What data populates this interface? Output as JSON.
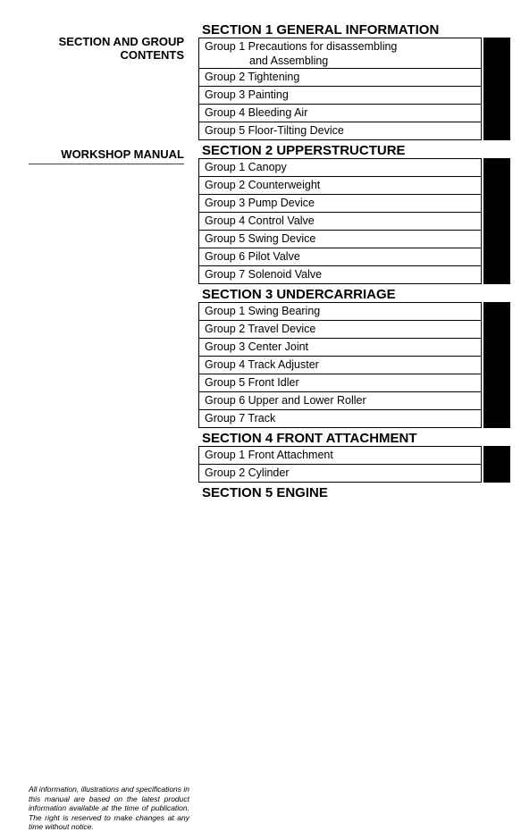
{
  "left": {
    "heading1_line1": "SECTION AND GROUP",
    "heading1_line2": "CONTENTS",
    "heading2": "WORKSHOP MANUAL",
    "disclaimer": "All information, illustrations and specifications in this manual are based on the latest product information available at the time of publication. The right is reserved to make changes at any time without notice."
  },
  "sections": [
    {
      "title": "SECTION 1 GENERAL INFORMATION",
      "groups": [
        {
          "label": "Group 1 Precautions for disassembling",
          "label2": "and Assembling",
          "tall": true
        },
        {
          "label": "Group 2 Tightening"
        },
        {
          "label": "Group 3 Painting"
        },
        {
          "label": "Group 4 Bleeding Air"
        },
        {
          "label": "Group 5 Floor-Tilting Device"
        }
      ]
    },
    {
      "title": "SECTION 2 UPPERSTRUCTURE",
      "groups": [
        {
          "label": "Group 1 Canopy"
        },
        {
          "label": "Group 2 Counterweight"
        },
        {
          "label": "Group 3 Pump Device"
        },
        {
          "label": "Group 4 Control Valve"
        },
        {
          "label": "Group 5 Swing Device"
        },
        {
          "label": "Group 6 Pilot Valve"
        },
        {
          "label": "Group 7 Solenoid Valve"
        }
      ]
    },
    {
      "title": "SECTION 3 UNDERCARRIAGE",
      "groups": [
        {
          "label": "Group 1 Swing Bearing"
        },
        {
          "label": "Group 2 Travel Device"
        },
        {
          "label": "Group 3 Center Joint"
        },
        {
          "label": "Group 4 Track Adjuster"
        },
        {
          "label": "Group 5 Front Idler"
        },
        {
          "label": "Group 6 Upper and Lower Roller"
        },
        {
          "label": "Group 7 Track"
        }
      ]
    },
    {
      "title": "SECTION 4 FRONT ATTACHMENT",
      "groups": [
        {
          "label": "Group 1 Front Attachment"
        },
        {
          "label": "Group 2 Cylinder"
        }
      ]
    },
    {
      "title": "SECTION 5 ENGINE",
      "groups": []
    }
  ]
}
